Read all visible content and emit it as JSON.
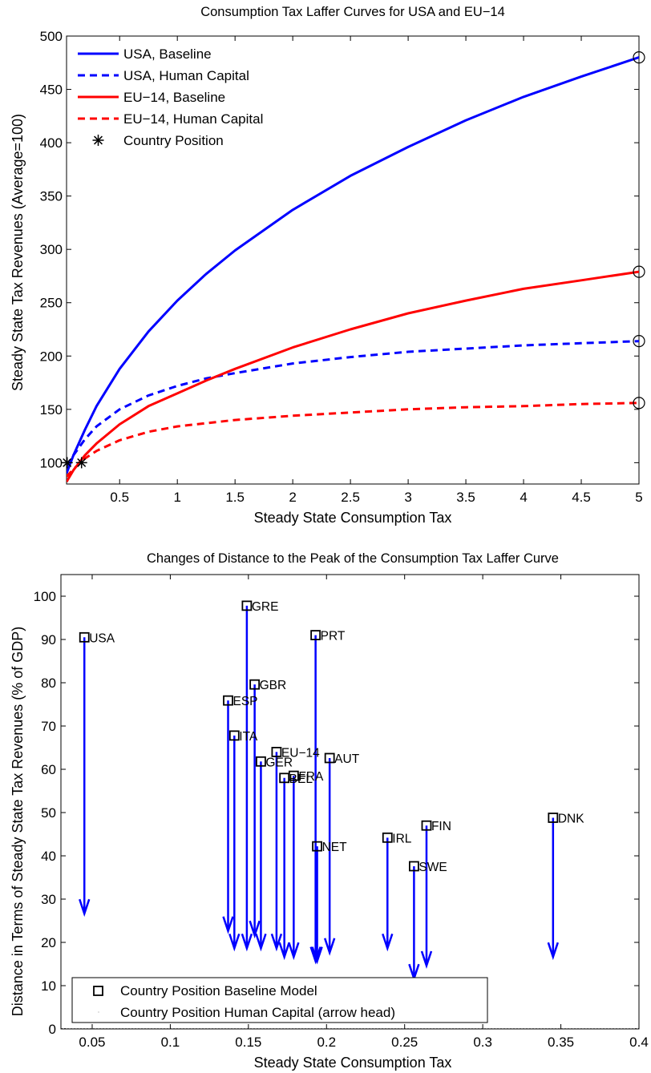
{
  "chart_data": [
    {
      "type": "line",
      "title": "Consumption Tax Laffer Curves for USA and EU−14",
      "xlabel": "Steady State Consumption Tax",
      "ylabel": "Steady State Tax Revenues (Average=100)",
      "xlim": [
        0.04,
        5
      ],
      "ylim": [
        80,
        500
      ],
      "xticks": [
        0.5,
        1,
        1.5,
        2,
        2.5,
        3,
        3.5,
        4,
        4.5,
        5
      ],
      "xtick_labels": [
        "0.5",
        "1",
        "1.5",
        "2",
        "2.5",
        "3",
        "3.5",
        "4",
        "4.5",
        "5"
      ],
      "yticks": [
        100,
        150,
        200,
        250,
        300,
        350,
        400,
        450,
        500
      ],
      "ytick_labels": [
        "100",
        "150",
        "200",
        "250",
        "300",
        "350",
        "400",
        "450",
        "500"
      ],
      "legend_placement": "top-left",
      "series": [
        {
          "name": "USA, Baseline",
          "color": "#0000ff",
          "dash": "solid",
          "x": [
            0.04,
            0.1,
            0.2,
            0.3,
            0.5,
            0.75,
            1,
            1.25,
            1.5,
            2,
            2.5,
            3,
            3.5,
            4,
            4.5,
            5
          ],
          "y": [
            90,
            107,
            131,
            153,
            188,
            223,
            252,
            277,
            299,
            337,
            369,
            396,
            421,
            443,
            462,
            480
          ]
        },
        {
          "name": "USA, Human Capital",
          "color": "#0000ff",
          "dash": "dashed",
          "x": [
            0.04,
            0.1,
            0.2,
            0.3,
            0.5,
            0.75,
            1,
            1.25,
            1.5,
            2,
            2.5,
            3,
            3.5,
            4,
            4.5,
            5
          ],
          "y": [
            97,
            107,
            122,
            134,
            150,
            163,
            172,
            179,
            184,
            193,
            199,
            204,
            207,
            210,
            212,
            214
          ]
        },
        {
          "name": "EU−14, Baseline",
          "color": "#ff0000",
          "dash": "solid",
          "x": [
            0.04,
            0.1,
            0.2,
            0.3,
            0.5,
            0.75,
            1,
            1.25,
            1.5,
            2,
            2.5,
            3,
            3.5,
            4,
            4.5,
            5
          ],
          "y": [
            82,
            93,
            107,
            118,
            136,
            153,
            165,
            177,
            188,
            208,
            225,
            240,
            252,
            263,
            271,
            279
          ]
        },
        {
          "name": "EU−14, Human Capital",
          "color": "#ff0000",
          "dash": "dashed",
          "x": [
            0.04,
            0.1,
            0.2,
            0.3,
            0.5,
            0.75,
            1,
            1.25,
            1.5,
            2,
            2.5,
            3,
            3.5,
            4,
            4.5,
            5
          ],
          "y": [
            87,
            94,
            104,
            111,
            121,
            129,
            134,
            137,
            140,
            144,
            147,
            150,
            152,
            153,
            155,
            156
          ]
        }
      ],
      "markers": {
        "legend_name": "Country Position",
        "country_position": [
          {
            "x": 0.045,
            "y": 100
          },
          {
            "x": 0.17,
            "y": 100
          }
        ],
        "peaks": [
          {
            "x": 5,
            "y": 480
          },
          {
            "x": 5,
            "y": 279
          },
          {
            "x": 5,
            "y": 214
          },
          {
            "x": 5,
            "y": 156
          }
        ]
      }
    },
    {
      "type": "scatter",
      "title": "Changes of Distance to the Peak of the Consumption Tax Laffer Curve",
      "xlabel": "Steady State Consumption Tax",
      "ylabel": "Distance in Terms of Steady State Tax Revenues (% of GDP)",
      "xlim": [
        0.03,
        0.4
      ],
      "ylim": [
        0,
        105
      ],
      "xticks": [
        0.05,
        0.1,
        0.15,
        0.2,
        0.25,
        0.3,
        0.35,
        0.4
      ],
      "xtick_labels": [
        "0.05",
        "0.1",
        "0.15",
        "0.2",
        "0.25",
        "0.3",
        "0.35",
        "0.4"
      ],
      "yticks": [
        0,
        10,
        20,
        30,
        40,
        50,
        60,
        70,
        80,
        90,
        100
      ],
      "ytick_labels": [
        "0",
        "10",
        "20",
        "30",
        "40",
        "50",
        "60",
        "70",
        "80",
        "90",
        "100"
      ],
      "legend_placement": "bottom-left",
      "legend": [
        "Country Position Baseline Model",
        "Country Position Human Capital (arrow head)"
      ],
      "arrow_color": "#0000ff",
      "points": [
        {
          "label": "USA",
          "x": 0.045,
          "baseline": 90.5,
          "human_capital": 27
        },
        {
          "label": "GRE",
          "x": 0.149,
          "baseline": 97.8,
          "human_capital": 19
        },
        {
          "label": "PRT",
          "x": 0.193,
          "baseline": 91.0,
          "human_capital": 16
        },
        {
          "label": "GBR",
          "x": 0.154,
          "baseline": 79.6,
          "human_capital": 22
        },
        {
          "label": "ESP",
          "x": 0.137,
          "baseline": 75.9,
          "human_capital": 23
        },
        {
          "label": "ITA",
          "x": 0.141,
          "baseline": 67.8,
          "human_capital": 19
        },
        {
          "label": "EU−14",
          "x": 0.168,
          "baseline": 64.0,
          "human_capital": 19
        },
        {
          "label": "AUT",
          "x": 0.202,
          "baseline": 62.6,
          "human_capital": 18
        },
        {
          "label": "GER",
          "x": 0.158,
          "baseline": 61.8,
          "human_capital": 19
        },
        {
          "label": "FRA",
          "x": 0.179,
          "baseline": 58.5,
          "human_capital": 17
        },
        {
          "label": "BEL",
          "x": 0.173,
          "baseline": 58.0,
          "human_capital": 17
        },
        {
          "label": "DNK",
          "x": 0.345,
          "baseline": 48.8,
          "human_capital": 17
        },
        {
          "label": "FIN",
          "x": 0.264,
          "baseline": 47.0,
          "human_capital": 15
        },
        {
          "label": "IRL",
          "x": 0.239,
          "baseline": 44.2,
          "human_capital": 19
        },
        {
          "label": "NET",
          "x": 0.194,
          "baseline": 42.2,
          "human_capital": 16
        },
        {
          "label": "SWE",
          "x": 0.256,
          "baseline": 37.6,
          "human_capital": 12
        }
      ]
    }
  ]
}
